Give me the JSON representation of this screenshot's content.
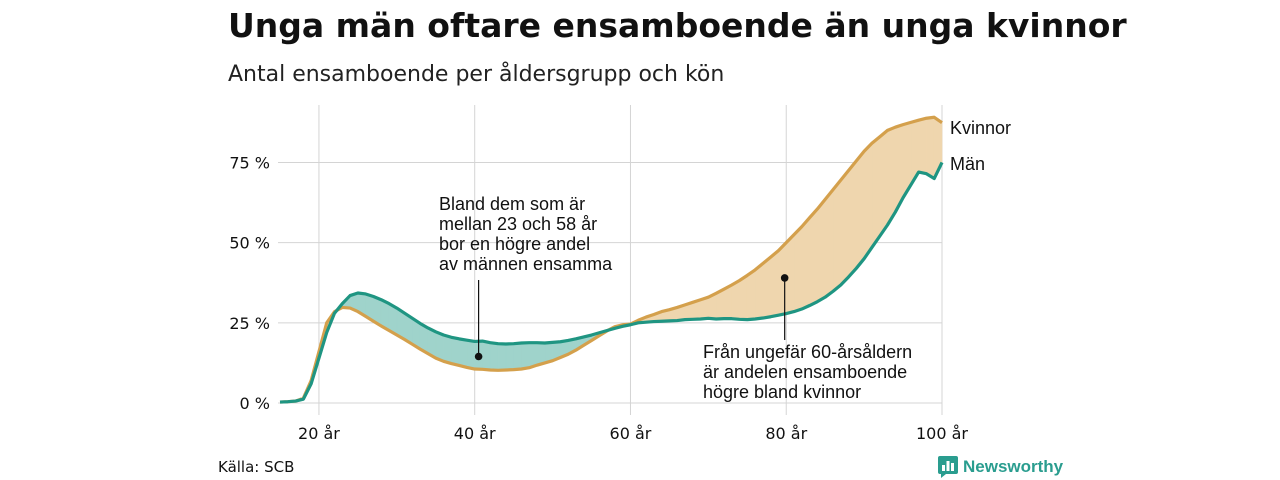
{
  "header": {
    "title": "Unga män oftare ensamboende än unga kvinnor",
    "subtitle": "Antal ensamboende per åldersgrupp och kön"
  },
  "footer": {
    "source": "Källa: SCB",
    "brand": "Newsworthy",
    "brand_icon": "bar-chart-logo-icon",
    "brand_color": "#2a9d8f"
  },
  "chart_data": {
    "type": "area",
    "x_unit": "år",
    "y_unit": "%",
    "xlim": [
      15,
      100
    ],
    "ylim": [
      0,
      87
    ],
    "x_ticks": [
      20,
      40,
      60,
      80,
      100
    ],
    "x_tick_labels": [
      "20 år",
      "40 år",
      "60 år",
      "80 år",
      "100 år"
    ],
    "y_ticks": [
      0,
      25,
      50,
      75
    ],
    "y_tick_labels": [
      "0 %",
      "25 %",
      "50 %",
      "75 %"
    ],
    "grid": true,
    "colors": {
      "kvinnor": "#d4a04c",
      "man": "#1f9582",
      "fill_man_higher": "#9fd3cb",
      "fill_women_higher": "#efd6ae"
    },
    "x": [
      15,
      16,
      17,
      18,
      19,
      20,
      21,
      22,
      23,
      24,
      25,
      26,
      27,
      28,
      29,
      30,
      31,
      32,
      33,
      34,
      35,
      36,
      37,
      38,
      39,
      40,
      41,
      42,
      43,
      44,
      45,
      46,
      47,
      48,
      49,
      50,
      51,
      52,
      53,
      54,
      55,
      56,
      57,
      58,
      59,
      60,
      61,
      62,
      63,
      64,
      65,
      66,
      67,
      68,
      69,
      70,
      71,
      72,
      73,
      74,
      75,
      76,
      77,
      78,
      79,
      80,
      81,
      82,
      83,
      84,
      85,
      86,
      87,
      88,
      89,
      90,
      91,
      92,
      93,
      94,
      95,
      96,
      97,
      98,
      99,
      100
    ],
    "series": [
      {
        "name": "Kvinnor",
        "values": [
          0.3,
          0.4,
          0.6,
          1.5,
          7,
          16,
          25,
          28.5,
          29.8,
          29.6,
          28.5,
          27,
          25.5,
          24,
          22.6,
          21.2,
          19.8,
          18.3,
          16.8,
          15.4,
          14,
          13,
          12.3,
          11.7,
          11.1,
          10.6,
          10.5,
          10.3,
          10.2,
          10.3,
          10.4,
          10.6,
          11,
          11.8,
          12.5,
          13.2,
          14.2,
          15.2,
          16.5,
          18,
          19.5,
          21,
          22.5,
          23.8,
          24.4,
          24.6,
          25.8,
          26.8,
          27.6,
          28.5,
          29.1,
          29.8,
          30.6,
          31.4,
          32.2,
          33,
          34.2,
          35.5,
          36.8,
          38.2,
          39.8,
          41.5,
          43.5,
          45.5,
          47.5,
          50,
          52.5,
          55,
          57.8,
          60.5,
          63.5,
          66.5,
          69.5,
          72.5,
          75.5,
          78.5,
          81,
          83,
          85,
          86,
          86.8,
          87.5,
          88.2,
          88.8,
          89.1,
          87.4
        ]
      },
      {
        "name": "Män",
        "values": [
          0.3,
          0.4,
          0.6,
          1.2,
          6,
          14,
          22,
          28,
          31,
          33.5,
          34.3,
          34,
          33.2,
          32.2,
          31,
          29.6,
          28,
          26.4,
          24.8,
          23.4,
          22.2,
          21.2,
          20.5,
          20,
          19.6,
          19.2,
          19.3,
          18.8,
          18.5,
          18.4,
          18.5,
          18.7,
          18.8,
          18.8,
          18.7,
          18.9,
          19.1,
          19.5,
          20,
          20.6,
          21.2,
          21.9,
          22.6,
          23.3,
          23.9,
          24.4,
          25,
          25.2,
          25.4,
          25.5,
          25.6,
          25.7,
          26,
          26.1,
          26.2,
          26.4,
          26.2,
          26.3,
          26.3,
          26.1,
          26,
          26.2,
          26.5,
          26.9,
          27.4,
          27.9,
          28.5,
          29.3,
          30.4,
          31.6,
          33,
          34.8,
          36.8,
          39.3,
          42,
          45,
          48.5,
          52,
          55.5,
          59.5,
          64,
          68,
          72,
          71.5,
          70,
          75
        ]
      }
    ],
    "annotations": [
      {
        "lines": [
          "Bland dem som är",
          "mellan 23 och 58 år",
          "bor en högre andel",
          "av männen ensamma"
        ],
        "point": [
          40.5,
          14.5
        ]
      },
      {
        "lines": [
          "Från ungefär 60-årsåldern",
          "är andelen ensamboende",
          "högre bland kvinnor"
        ],
        "point": [
          79.8,
          39
        ]
      }
    ]
  }
}
